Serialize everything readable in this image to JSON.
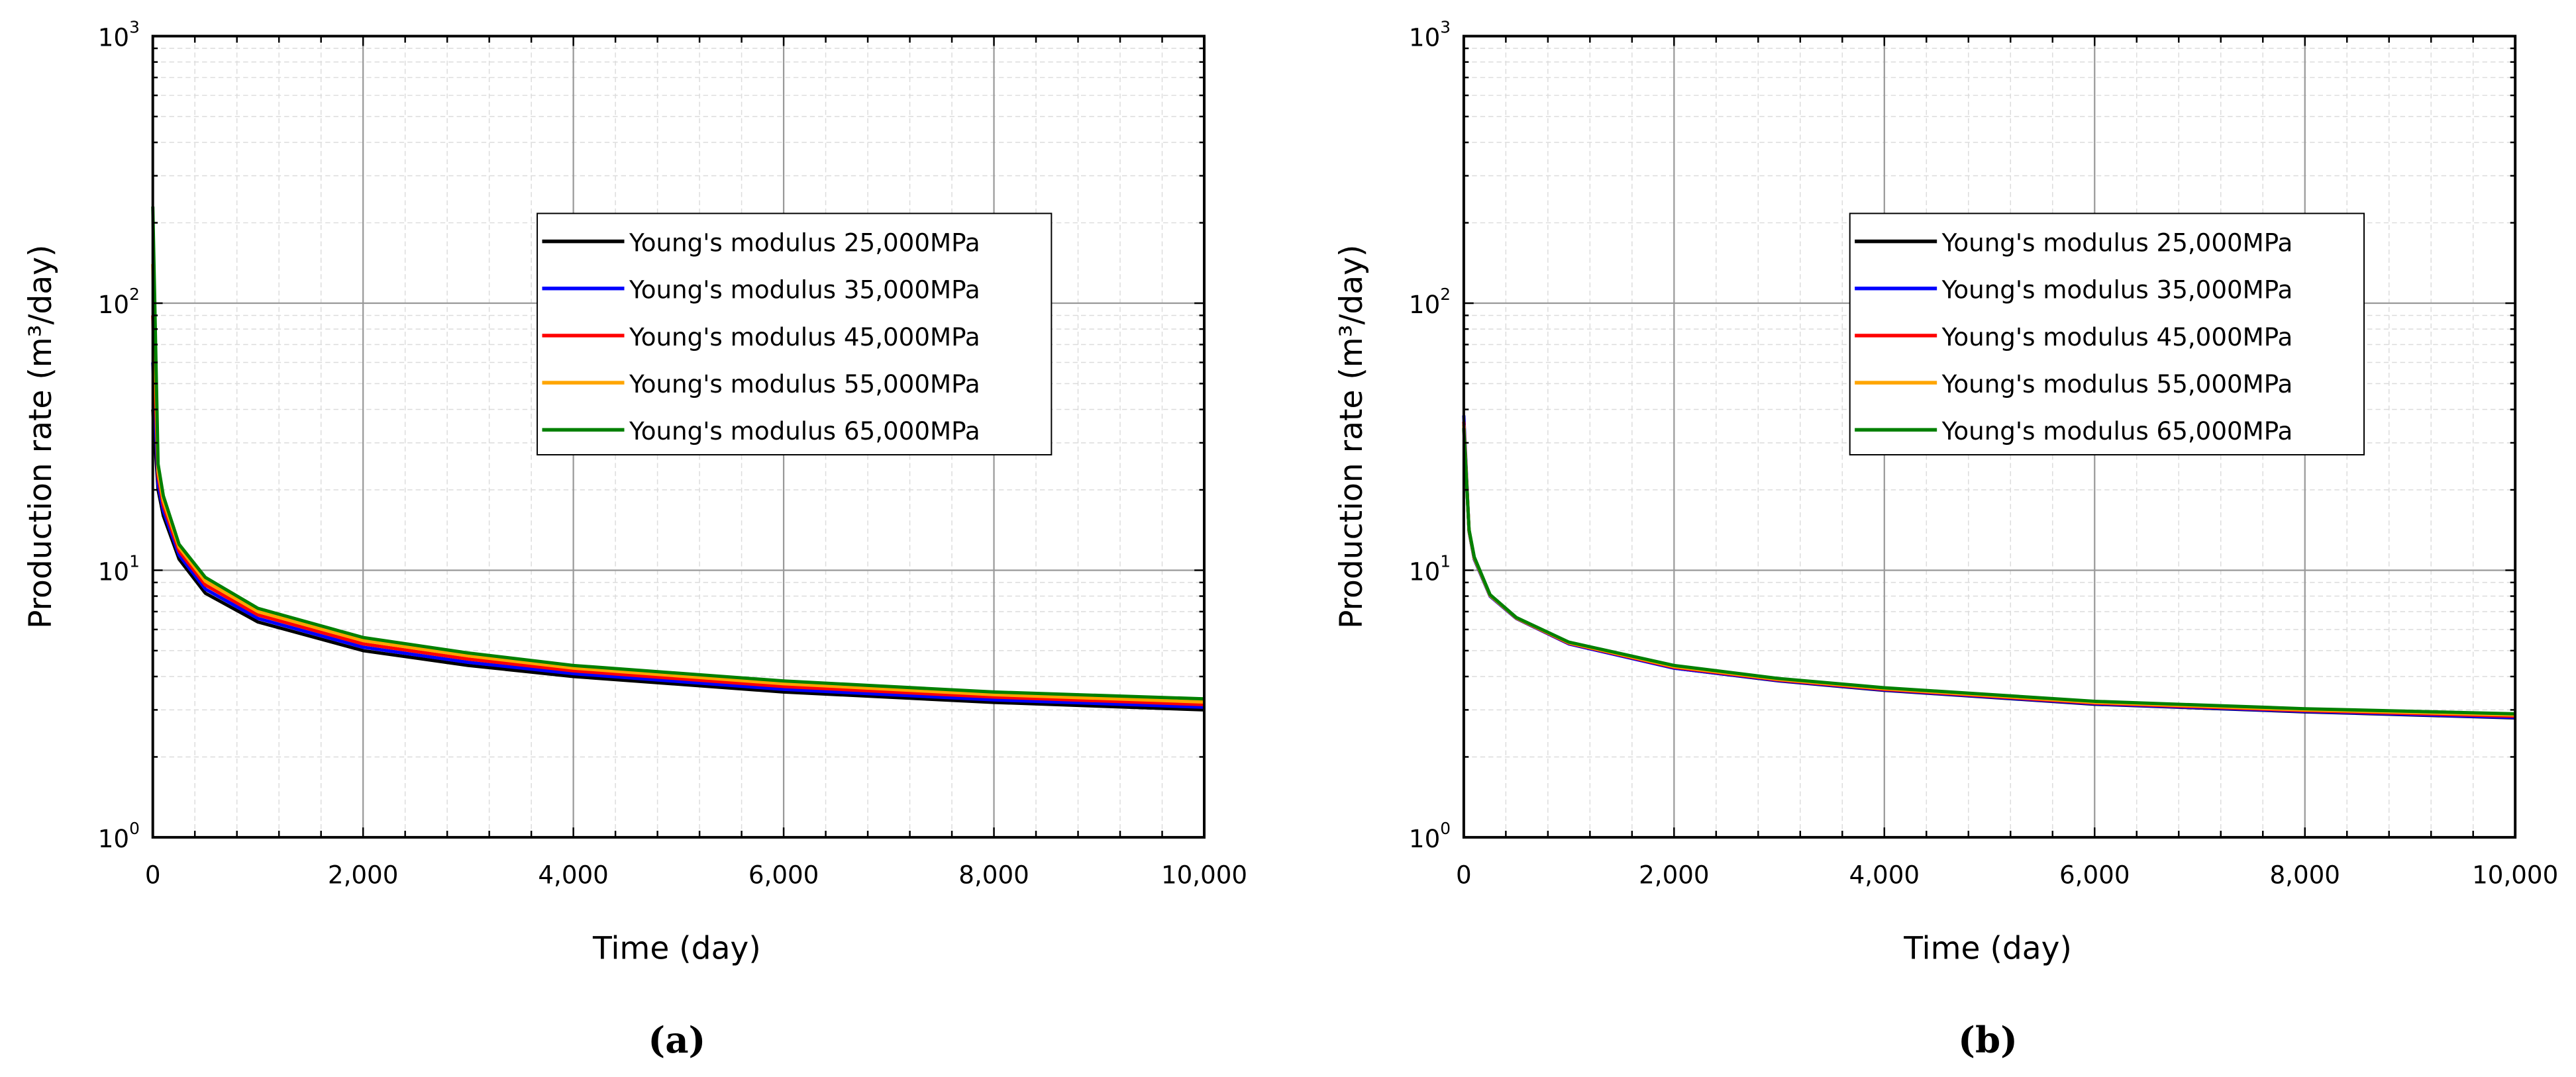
{
  "chart_data": [
    {
      "type": "line",
      "panel_label": "(a)",
      "xlabel": "Time (day)",
      "ylabel": "Production rate (m³/day)",
      "xlim": [
        0,
        10000
      ],
      "ylim": [
        1,
        1000
      ],
      "yscale": "log",
      "grid": true,
      "legend_position": "upper-center-right",
      "xticks": [
        "0",
        "2,000",
        "4,000",
        "6,000",
        "8,000",
        "10,000"
      ],
      "yticks": [
        {
          "base": "10",
          "exp": "0"
        },
        {
          "base": "10",
          "exp": "1"
        },
        {
          "base": "10",
          "exp": "2"
        },
        {
          "base": "10",
          "exp": "3"
        }
      ],
      "x": [
        0,
        50,
        100,
        250,
        500,
        1000,
        2000,
        3000,
        4000,
        6000,
        8000,
        10000
      ],
      "series": [
        {
          "name": "Young's modulus 25,000MPa",
          "color": "#000000",
          "values": [
            40,
            20,
            16,
            11,
            8.2,
            6.4,
            5.0,
            4.4,
            4.0,
            3.5,
            3.2,
            3.0
          ]
        },
        {
          "name": "Young's modulus 35,000MPa",
          "color": "#0000ff",
          "values": [
            60,
            21,
            16.7,
            11.4,
            8.5,
            6.6,
            5.15,
            4.52,
            4.1,
            3.58,
            3.27,
            3.07
          ]
        },
        {
          "name": "Young's modulus 45,000MPa",
          "color": "#ff0000",
          "values": [
            90,
            22.5,
            17.5,
            11.8,
            8.8,
            6.8,
            5.3,
            4.65,
            4.2,
            3.67,
            3.35,
            3.14
          ]
        },
        {
          "name": "Young's modulus 55,000MPa",
          "color": "#ffa500",
          "values": [
            140,
            23.5,
            18.2,
            12.2,
            9.1,
            7.0,
            5.45,
            4.78,
            4.3,
            3.76,
            3.42,
            3.21
          ]
        },
        {
          "name": "Young's modulus 65,000MPa",
          "color": "#008000",
          "values": [
            230,
            25,
            19,
            12.5,
            9.4,
            7.2,
            5.6,
            4.9,
            4.4,
            3.85,
            3.5,
            3.3
          ]
        }
      ]
    },
    {
      "type": "line",
      "panel_label": "(b)",
      "xlabel": "Time (day)",
      "ylabel": "Production rate (m³/day)",
      "xlim": [
        0,
        10000
      ],
      "ylim": [
        1,
        1000
      ],
      "yscale": "log",
      "grid": true,
      "legend_position": "upper-center-right",
      "xticks": [
        "0",
        "2,000",
        "4,000",
        "6,000",
        "8,000",
        "10,000"
      ],
      "yticks": [
        {
          "base": "10",
          "exp": "0"
        },
        {
          "base": "10",
          "exp": "1"
        },
        {
          "base": "10",
          "exp": "2"
        },
        {
          "base": "10",
          "exp": "3"
        }
      ],
      "x": [
        0,
        50,
        100,
        250,
        500,
        1000,
        2000,
        3000,
        4000,
        6000,
        8000,
        10000
      ],
      "series": [
        {
          "name": "Young's modulus 25,000MPa",
          "color": "#000000",
          "values": [
            35,
            14,
            11,
            8,
            6.6,
            5.3,
            4.3,
            3.85,
            3.55,
            3.15,
            2.95,
            2.8
          ]
        },
        {
          "name": "Young's modulus 35,000MPa",
          "color": "#0000ff",
          "values": [
            38,
            14,
            11,
            8,
            6.6,
            5.3,
            4.3,
            3.86,
            3.56,
            3.16,
            2.96,
            2.81
          ]
        },
        {
          "name": "Young's modulus 45,000MPa",
          "color": "#ff0000",
          "values": [
            36,
            14.1,
            11.1,
            8.05,
            6.62,
            5.33,
            4.33,
            3.88,
            3.58,
            3.18,
            2.98,
            2.84
          ]
        },
        {
          "name": "Young's modulus 55,000MPa",
          "color": "#ffa500",
          "values": [
            35,
            14.1,
            11.1,
            8.05,
            6.63,
            5.35,
            4.36,
            3.9,
            3.6,
            3.2,
            3.0,
            2.87
          ]
        },
        {
          "name": "Young's modulus 65,000MPa",
          "color": "#008000",
          "values": [
            34,
            14.2,
            11.2,
            8.1,
            6.65,
            5.38,
            4.4,
            3.93,
            3.63,
            3.23,
            3.03,
            2.9
          ]
        }
      ]
    }
  ]
}
